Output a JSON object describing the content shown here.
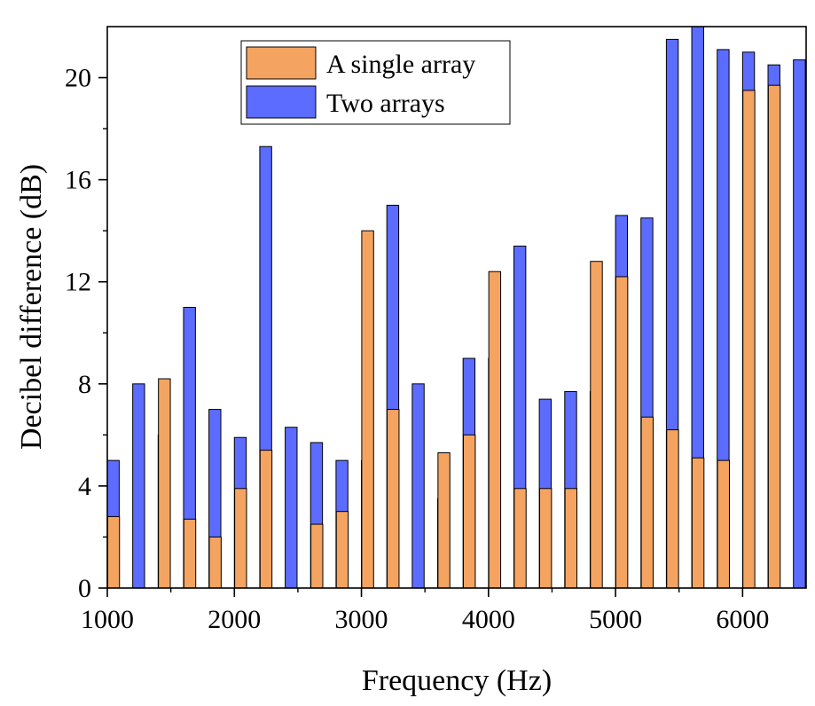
{
  "chart_data": {
    "type": "bar",
    "title": "",
    "xlabel": "Frequency (Hz)",
    "ylabel": "Decibel difference (dB)",
    "xlim": [
      1000,
      6500
    ],
    "ylim": [
      0,
      22
    ],
    "x_ticks": [
      1000,
      2000,
      3000,
      4000,
      5000,
      6000
    ],
    "x_tick_labels": [
      "1000",
      "2000",
      "3000",
      "4000",
      "5000",
      "6000"
    ],
    "y_ticks": [
      0,
      4,
      8,
      12,
      16,
      20
    ],
    "y_tick_labels": [
      "0",
      "4",
      "8",
      "12",
      "16",
      "20"
    ],
    "grid": false,
    "legend": "top-center",
    "categories": [
      1000,
      1200,
      1400,
      1600,
      1800,
      2000,
      2200,
      2400,
      2600,
      2800,
      3000,
      3200,
      3400,
      3600,
      3800,
      4000,
      4200,
      4400,
      4600,
      4800,
      5000,
      5200,
      5400,
      5600,
      5800,
      6000,
      6200,
      6400
    ],
    "series": [
      {
        "name": "A single array",
        "color": "#F4A460",
        "values": [
          0,
          2.8,
          0,
          8.2,
          2.7,
          2.0,
          3.9,
          5.4,
          0,
          2.5,
          3.0,
          14.0,
          7.0,
          0,
          5.3,
          6.0,
          12.4,
          3.9,
          3.9,
          3.9,
          12.8,
          12.2,
          6.7,
          6.2,
          5.1,
          5.0,
          19.5,
          19.7
        ]
      },
      {
        "name": "Two arrays",
        "color": "#5B6CFF",
        "values": [
          5.0,
          8.0,
          6.0,
          11.0,
          7.0,
          5.9,
          17.3,
          6.3,
          5.7,
          5.0,
          5.0,
          15.0,
          8.0,
          3.5,
          9.0,
          9.0,
          13.4,
          7.4,
          7.7,
          7.7,
          14.6,
          14.5,
          21.5,
          22.0,
          21.1,
          21.0,
          20.5,
          20.7
        ]
      }
    ]
  }
}
